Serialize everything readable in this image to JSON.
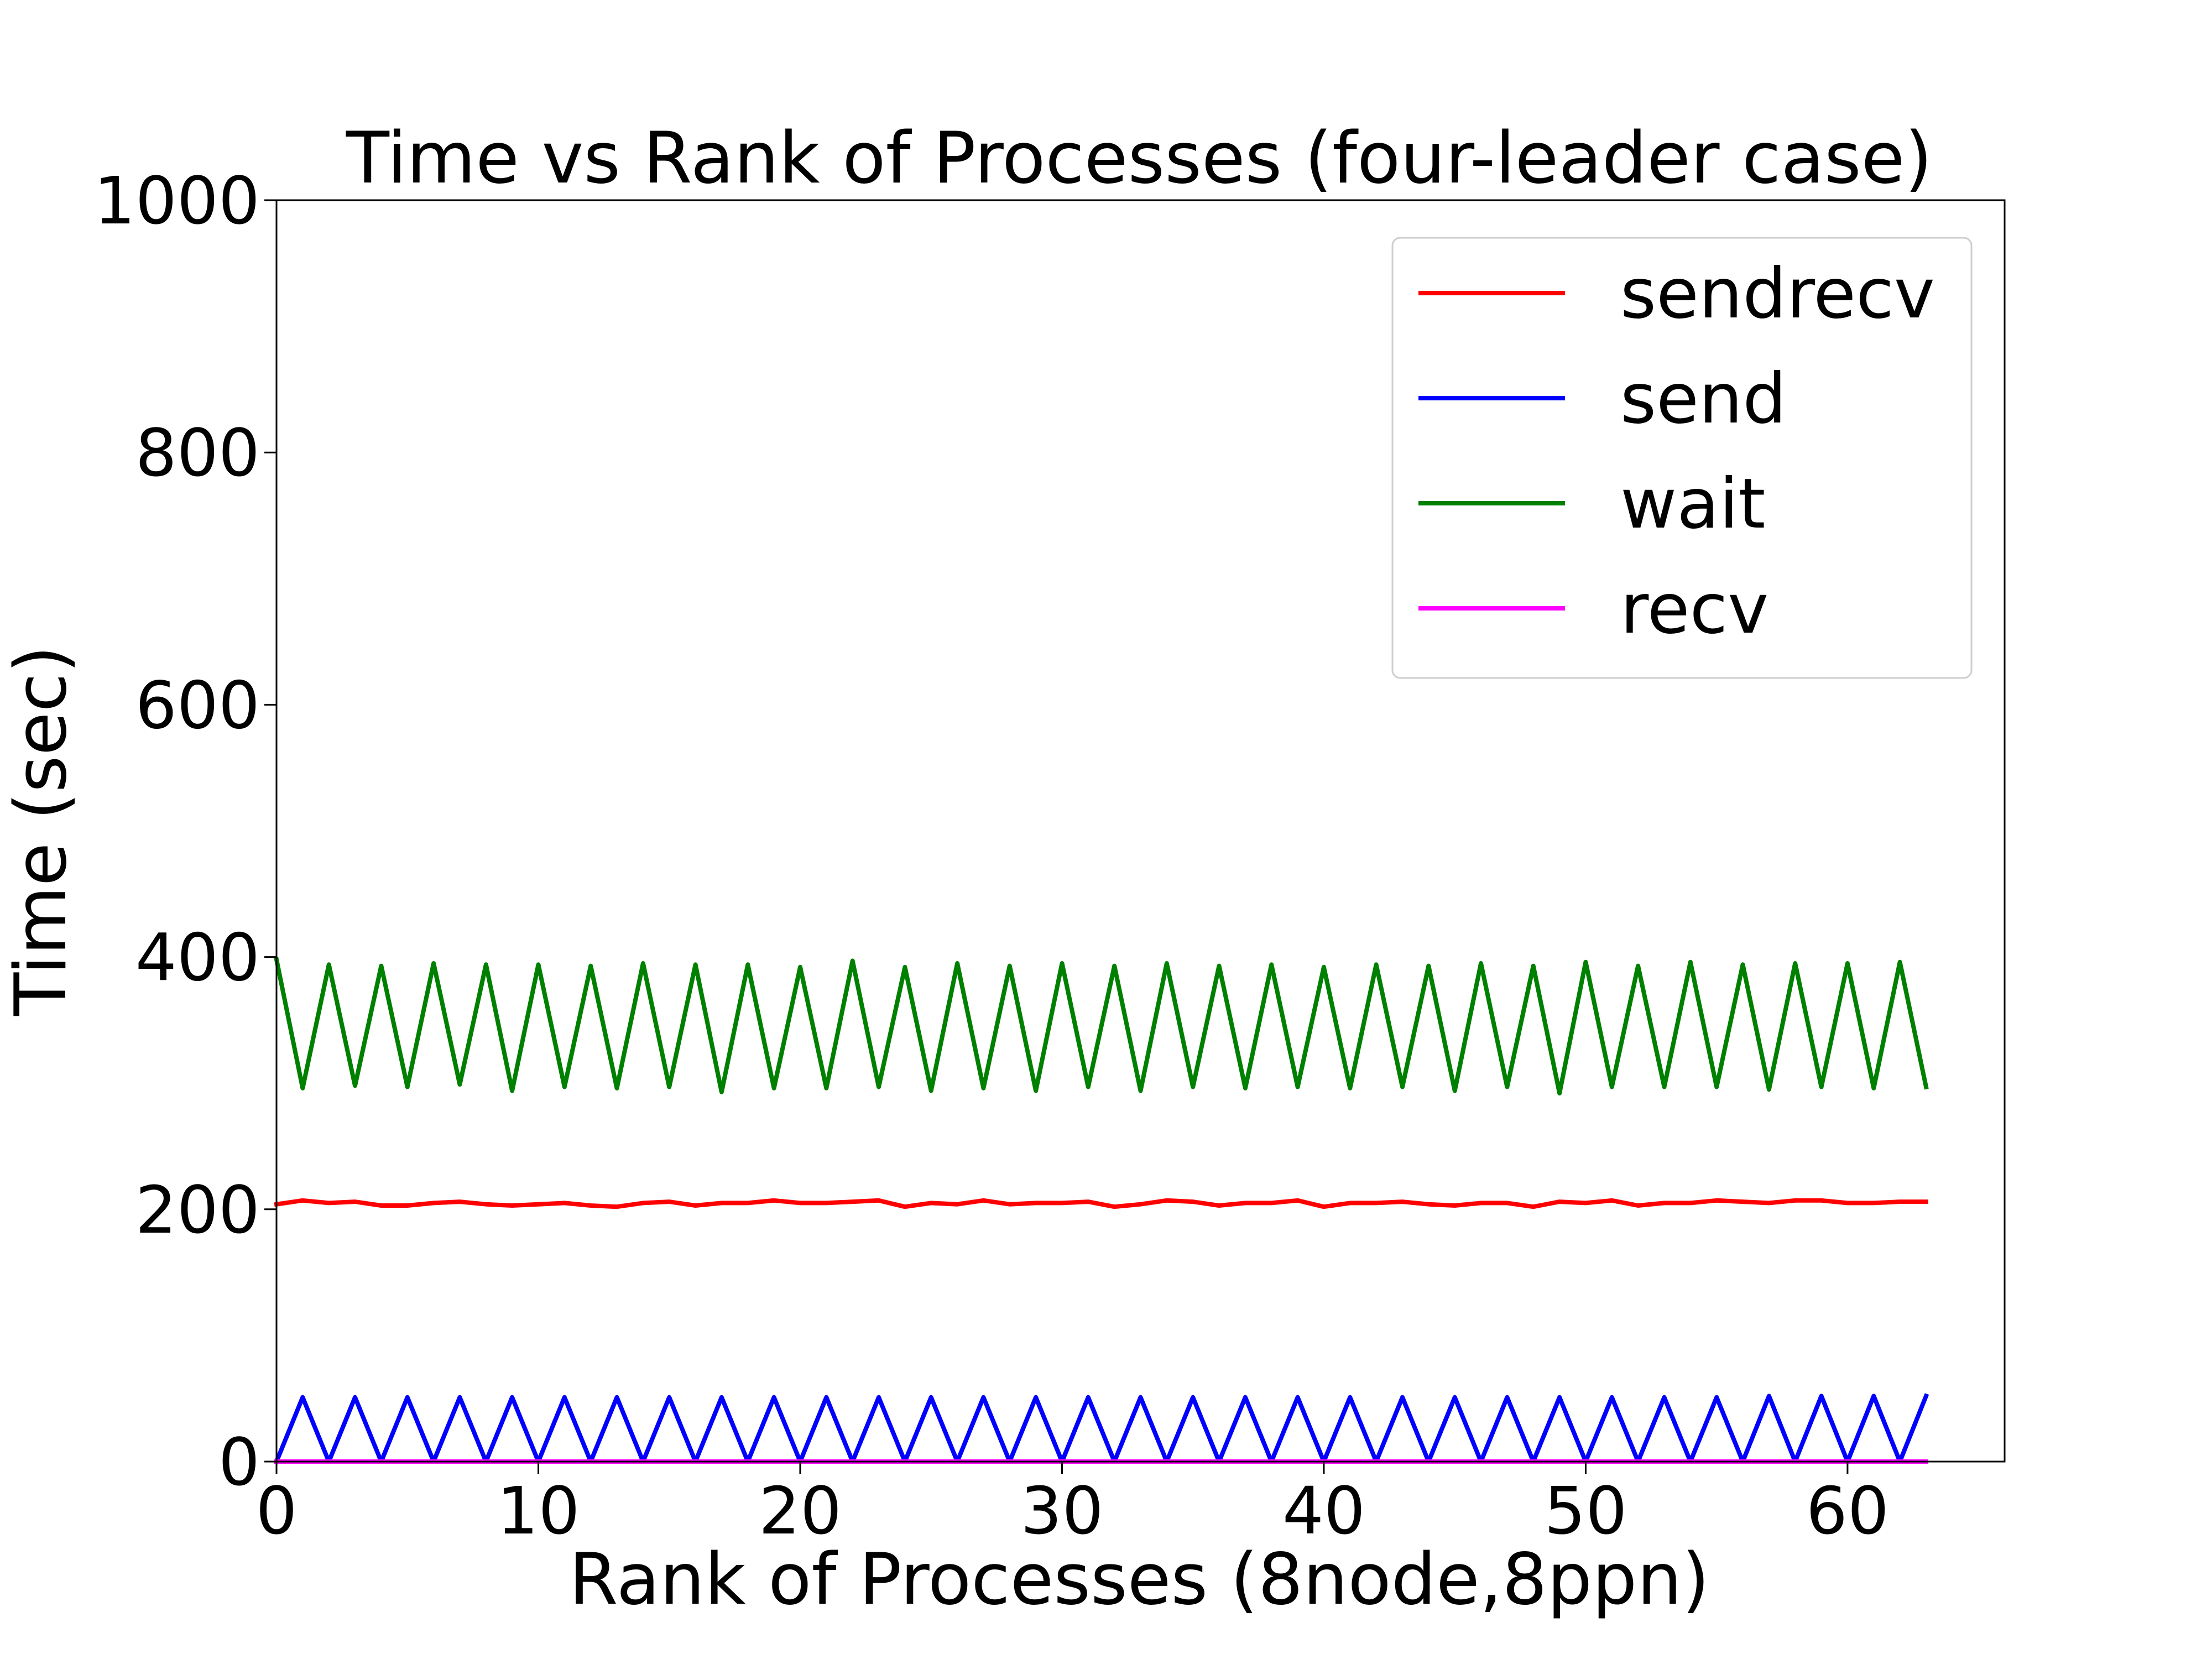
{
  "chart_data": {
    "type": "line",
    "title": "Time vs Rank of Processes (four-leader case)",
    "xlabel": "Rank of Processes (8node,8ppn)",
    "ylabel": "Time (sec)",
    "xlim": [
      0,
      66
    ],
    "ylim": [
      0,
      1000
    ],
    "xticks": [
      0,
      10,
      20,
      30,
      40,
      50,
      60
    ],
    "yticks": [
      0,
      200,
      400,
      600,
      800,
      1000
    ],
    "grid": false,
    "legend_position": "upper right",
    "x": [
      0,
      1,
      2,
      3,
      4,
      5,
      6,
      7,
      8,
      9,
      10,
      11,
      12,
      13,
      14,
      15,
      16,
      17,
      18,
      19,
      20,
      21,
      22,
      23,
      24,
      25,
      26,
      27,
      28,
      29,
      30,
      31,
      32,
      33,
      34,
      35,
      36,
      37,
      38,
      39,
      40,
      41,
      42,
      43,
      44,
      45,
      46,
      47,
      48,
      49,
      50,
      51,
      52,
      53,
      54,
      55,
      56,
      57,
      58,
      59,
      60,
      61,
      62,
      63
    ],
    "series": [
      {
        "name": "sendrecv",
        "color": "#ff0000",
        "values": [
          204,
          207,
          205,
          206,
          203,
          203,
          205,
          206,
          204,
          203,
          204,
          205,
          203,
          202,
          205,
          206,
          203,
          205,
          205,
          207,
          205,
          205,
          206,
          207,
          202,
          205,
          204,
          207,
          204,
          205,
          205,
          206,
          202,
          204,
          207,
          206,
          203,
          205,
          205,
          207,
          202,
          205,
          205,
          206,
          204,
          203,
          205,
          205,
          202,
          206,
          205,
          207,
          203,
          205,
          205,
          207,
          206,
          205,
          207,
          207,
          205,
          205,
          206,
          206
        ]
      },
      {
        "name": "send",
        "color": "#0000ff",
        "values": [
          0,
          51,
          0,
          51,
          0,
          51,
          0,
          51,
          0,
          51,
          0,
          51,
          0,
          51,
          0,
          51,
          0,
          51,
          0,
          51,
          0,
          51,
          0,
          51,
          0,
          51,
          0,
          51,
          0,
          51,
          0,
          51,
          0,
          51,
          0,
          51,
          0,
          51,
          0,
          51,
          0,
          51,
          0,
          51,
          0,
          51,
          0,
          51,
          0,
          51,
          0,
          51,
          0,
          51,
          0,
          51,
          0,
          52,
          0,
          52,
          0,
          52,
          0,
          52
        ]
      },
      {
        "name": "wait",
        "color": "#008000",
        "values": [
          398,
          296,
          394,
          298,
          393,
          297,
          395,
          299,
          394,
          294,
          394,
          297,
          393,
          296,
          395,
          297,
          394,
          293,
          394,
          296,
          392,
          296,
          397,
          297,
          392,
          294,
          395,
          296,
          393,
          294,
          395,
          297,
          393,
          294,
          395,
          297,
          393,
          296,
          394,
          297,
          392,
          296,
          394,
          297,
          393,
          294,
          395,
          297,
          393,
          292,
          396,
          297,
          393,
          297,
          396,
          297,
          394,
          295,
          395,
          297,
          395,
          296,
          396,
          297
        ]
      },
      {
        "name": "recv",
        "color": "#ff00ff",
        "values": [
          0,
          0,
          0,
          0,
          0,
          0,
          0,
          0,
          0,
          0,
          0,
          0,
          0,
          0,
          0,
          0,
          0,
          0,
          0,
          0,
          0,
          0,
          0,
          0,
          0,
          0,
          0,
          0,
          0,
          0,
          0,
          0,
          0,
          0,
          0,
          0,
          0,
          0,
          0,
          0,
          0,
          0,
          0,
          0,
          0,
          0,
          0,
          0,
          0,
          0,
          0,
          0,
          0,
          0,
          0,
          0,
          0,
          0,
          0,
          0,
          0,
          0,
          0,
          0
        ]
      }
    ]
  }
}
